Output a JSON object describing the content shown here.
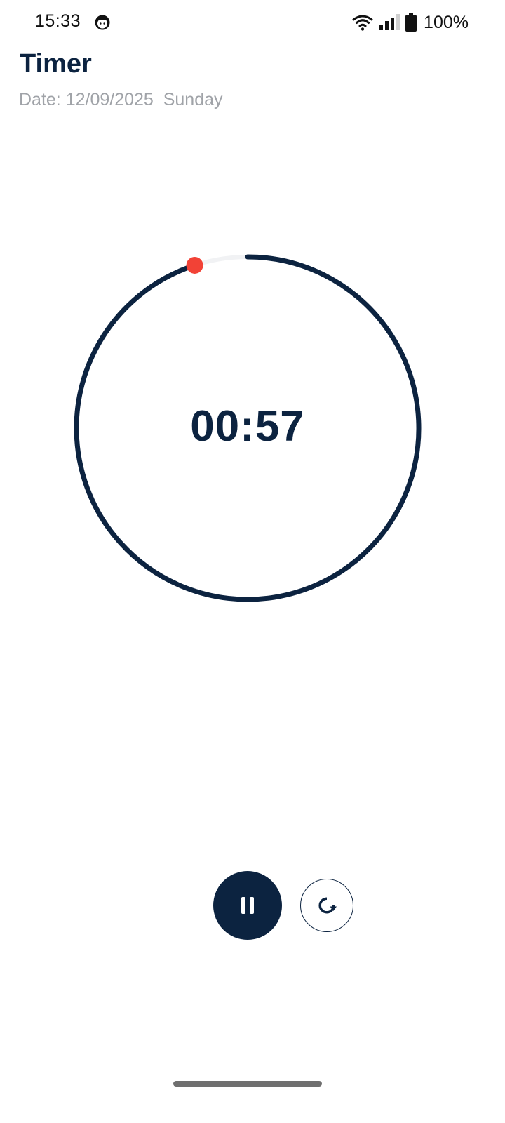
{
  "status_bar": {
    "time": "15:33",
    "battery_percent": "100%",
    "icons": [
      "avatar-icon",
      "wifi-icon",
      "signal-icon",
      "battery-icon"
    ]
  },
  "header": {
    "title": "Timer",
    "date_line": "Date: 12/09/2025  Sunday"
  },
  "timer": {
    "display": "00:57",
    "progress_fraction": 0.95
  },
  "controls": {
    "pause_icon": "pause-icon",
    "reset_icon": "reset-icon"
  },
  "colors": {
    "primary": "#0c2340",
    "indicator_dot": "#f24236",
    "track": "#f1f2f4",
    "secondary_text": "#a0a3a8"
  }
}
